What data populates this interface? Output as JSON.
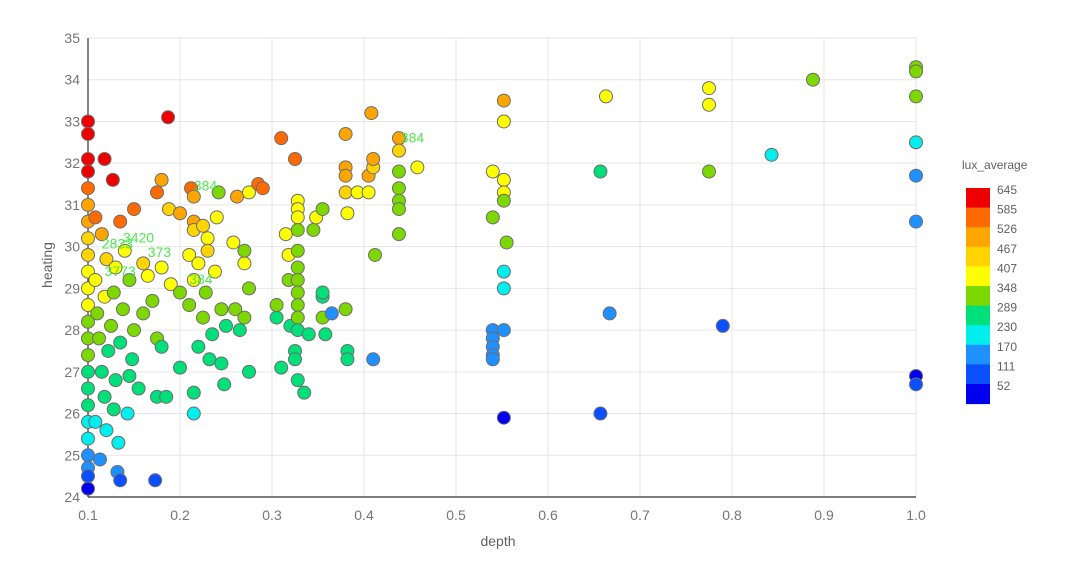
{
  "chart_data": {
    "type": "scatter",
    "xlabel": "depth",
    "ylabel": "heating",
    "xlim": [
      0.1,
      1.0
    ],
    "ylim": [
      24,
      35
    ],
    "xticks": [
      "0.1",
      "0.2",
      "0.3",
      "0.4",
      "0.5",
      "0.6",
      "0.7",
      "0.8",
      "0.9",
      "1.0"
    ],
    "yticks": [
      "24",
      "25",
      "26",
      "27",
      "28",
      "29",
      "30",
      "31",
      "32",
      "33",
      "34",
      "35"
    ],
    "grid": true,
    "color_scale": {
      "title": "lux_average",
      "placement": "right",
      "bins": [
        {
          "label": "645",
          "color": "#ee0000"
        },
        {
          "label": "585",
          "color": "#ff6a00"
        },
        {
          "label": "526",
          "color": "#ffa500"
        },
        {
          "label": "467",
          "color": "#ffd400"
        },
        {
          "label": "407",
          "color": "#ffff00"
        },
        {
          "label": "348",
          "color": "#7dd700"
        },
        {
          "label": "289",
          "color": "#00e07a"
        },
        {
          "label": "230",
          "color": "#00eeee"
        },
        {
          "label": "170",
          "color": "#1e90ff"
        },
        {
          "label": "111",
          "color": "#0a50ff"
        },
        {
          "label": "52",
          "color": "#0000ee"
        }
      ]
    },
    "points": [
      {
        "x": 0.1,
        "y": 33.0,
        "v": 640
      },
      {
        "x": 0.1,
        "y": 32.7,
        "v": 630
      },
      {
        "x": 0.1,
        "y": 32.1,
        "v": 640
      },
      {
        "x": 0.1,
        "y": 31.8,
        "v": 620
      },
      {
        "x": 0.1,
        "y": 31.4,
        "v": 560
      },
      {
        "x": 0.1,
        "y": 31.0,
        "v": 540
      },
      {
        "x": 0.1,
        "y": 30.6,
        "v": 520
      },
      {
        "x": 0.1,
        "y": 30.2,
        "v": 480
      },
      {
        "x": 0.1,
        "y": 29.8,
        "v": 440
      },
      {
        "x": 0.1,
        "y": 29.4,
        "v": 420
      },
      {
        "x": 0.1,
        "y": 29.0,
        "v": 400
      },
      {
        "x": 0.1,
        "y": 28.6,
        "v": 380
      },
      {
        "x": 0.1,
        "y": 28.2,
        "v": 360
      },
      {
        "x": 0.1,
        "y": 27.8,
        "v": 340
      },
      {
        "x": 0.1,
        "y": 27.4,
        "v": 320
      },
      {
        "x": 0.1,
        "y": 27.0,
        "v": 300
      },
      {
        "x": 0.1,
        "y": 26.6,
        "v": 290
      },
      {
        "x": 0.1,
        "y": 26.2,
        "v": 270
      },
      {
        "x": 0.1,
        "y": 25.8,
        "v": 250
      },
      {
        "x": 0.1,
        "y": 25.4,
        "v": 230
      },
      {
        "x": 0.1,
        "y": 25.0,
        "v": 200
      },
      {
        "x": 0.1,
        "y": 24.7,
        "v": 170
      },
      {
        "x": 0.1,
        "y": 24.5,
        "v": 110
      },
      {
        "x": 0.1,
        "y": 24.2,
        "v": 60
      },
      {
        "x": 0.118,
        "y": 32.1,
        "v": 630
      },
      {
        "x": 0.127,
        "y": 31.6,
        "v": 640
      },
      {
        "x": 0.187,
        "y": 33.1,
        "v": 640
      },
      {
        "x": 0.108,
        "y": 30.7,
        "v": 560
      },
      {
        "x": 0.115,
        "y": 30.3,
        "v": 520
      },
      {
        "x": 0.135,
        "y": 30.6,
        "v": 560
      },
      {
        "x": 0.15,
        "y": 30.9,
        "v": 560
      },
      {
        "x": 0.12,
        "y": 29.7,
        "v": 450
      },
      {
        "x": 0.14,
        "y": 29.9,
        "v": 420
      },
      {
        "x": 0.13,
        "y": 29.5,
        "v": 400
      },
      {
        "x": 0.16,
        "y": 29.6,
        "v": 440
      },
      {
        "x": 0.108,
        "y": 29.2,
        "v": 380
      },
      {
        "x": 0.118,
        "y": 28.8,
        "v": 400
      },
      {
        "x": 0.128,
        "y": 28.9,
        "v": 370
      },
      {
        "x": 0.145,
        "y": 29.2,
        "v": 350
      },
      {
        "x": 0.11,
        "y": 28.4,
        "v": 340
      },
      {
        "x": 0.125,
        "y": 28.1,
        "v": 330
      },
      {
        "x": 0.138,
        "y": 28.5,
        "v": 340
      },
      {
        "x": 0.15,
        "y": 28.0,
        "v": 320
      },
      {
        "x": 0.112,
        "y": 27.8,
        "v": 320
      },
      {
        "x": 0.122,
        "y": 27.5,
        "v": 310
      },
      {
        "x": 0.135,
        "y": 27.7,
        "v": 300
      },
      {
        "x": 0.148,
        "y": 27.3,
        "v": 300
      },
      {
        "x": 0.115,
        "y": 27.0,
        "v": 290
      },
      {
        "x": 0.13,
        "y": 26.8,
        "v": 280
      },
      {
        "x": 0.145,
        "y": 26.9,
        "v": 290
      },
      {
        "x": 0.155,
        "y": 26.6,
        "v": 300
      },
      {
        "x": 0.118,
        "y": 26.4,
        "v": 280
      },
      {
        "x": 0.128,
        "y": 26.1,
        "v": 270
      },
      {
        "x": 0.108,
        "y": 25.8,
        "v": 240
      },
      {
        "x": 0.12,
        "y": 25.6,
        "v": 230
      },
      {
        "x": 0.133,
        "y": 25.3,
        "v": 230
      },
      {
        "x": 0.143,
        "y": 26.0,
        "v": 240
      },
      {
        "x": 0.113,
        "y": 24.9,
        "v": 170
      },
      {
        "x": 0.132,
        "y": 24.6,
        "v": 150
      },
      {
        "x": 0.135,
        "y": 24.4,
        "v": 120
      },
      {
        "x": 0.173,
        "y": 24.4,
        "v": 120
      },
      {
        "x": 0.16,
        "y": 28.4,
        "v": 330
      },
      {
        "x": 0.17,
        "y": 28.7,
        "v": 350
      },
      {
        "x": 0.175,
        "y": 27.8,
        "v": 320
      },
      {
        "x": 0.18,
        "y": 27.6,
        "v": 300
      },
      {
        "x": 0.165,
        "y": 29.3,
        "v": 380
      },
      {
        "x": 0.18,
        "y": 29.5,
        "v": 400
      },
      {
        "x": 0.19,
        "y": 29.1,
        "v": 380
      },
      {
        "x": 0.2,
        "y": 28.9,
        "v": 360
      },
      {
        "x": 0.175,
        "y": 26.4,
        "v": 270
      },
      {
        "x": 0.185,
        "y": 26.4,
        "v": 300
      },
      {
        "x": 0.2,
        "y": 27.1,
        "v": 300
      },
      {
        "x": 0.215,
        "y": 26.5,
        "v": 260
      },
      {
        "x": 0.215,
        "y": 26.0,
        "v": 250
      },
      {
        "x": 0.18,
        "y": 31.6,
        "v": 520
      },
      {
        "x": 0.175,
        "y": 31.3,
        "v": 560
      },
      {
        "x": 0.188,
        "y": 30.9,
        "v": 470
      },
      {
        "x": 0.2,
        "y": 30.8,
        "v": 500
      },
      {
        "x": 0.212,
        "y": 31.4,
        "v": 560
      },
      {
        "x": 0.215,
        "y": 31.2,
        "v": 540
      },
      {
        "x": 0.215,
        "y": 30.6,
        "v": 500
      },
      {
        "x": 0.215,
        "y": 30.4,
        "v": 480
      },
      {
        "x": 0.225,
        "y": 30.5,
        "v": 440
      },
      {
        "x": 0.23,
        "y": 30.2,
        "v": 420
      },
      {
        "x": 0.24,
        "y": 30.7,
        "v": 420
      },
      {
        "x": 0.242,
        "y": 31.3,
        "v": 350
      },
      {
        "x": 0.23,
        "y": 29.9,
        "v": 440
      },
      {
        "x": 0.21,
        "y": 29.8,
        "v": 420
      },
      {
        "x": 0.22,
        "y": 29.6,
        "v": 410
      },
      {
        "x": 0.238,
        "y": 29.4,
        "v": 420
      },
      {
        "x": 0.215,
        "y": 29.2,
        "v": 380
      },
      {
        "x": 0.228,
        "y": 28.9,
        "v": 370
      },
      {
        "x": 0.245,
        "y": 28.5,
        "v": 340
      },
      {
        "x": 0.21,
        "y": 28.6,
        "v": 360
      },
      {
        "x": 0.225,
        "y": 28.3,
        "v": 340
      },
      {
        "x": 0.235,
        "y": 27.9,
        "v": 310
      },
      {
        "x": 0.25,
        "y": 28.1,
        "v": 310
      },
      {
        "x": 0.22,
        "y": 27.6,
        "v": 310
      },
      {
        "x": 0.232,
        "y": 27.3,
        "v": 300
      },
      {
        "x": 0.245,
        "y": 27.2,
        "v": 300
      },
      {
        "x": 0.248,
        "y": 26.7,
        "v": 270
      },
      {
        "x": 0.26,
        "y": 28.5,
        "v": 330
      },
      {
        "x": 0.265,
        "y": 28.0,
        "v": 300
      },
      {
        "x": 0.27,
        "y": 28.3,
        "v": 320
      },
      {
        "x": 0.27,
        "y": 29.6,
        "v": 380
      },
      {
        "x": 0.258,
        "y": 30.1,
        "v": 420
      },
      {
        "x": 0.27,
        "y": 29.9,
        "v": 370
      },
      {
        "x": 0.262,
        "y": 31.2,
        "v": 520
      },
      {
        "x": 0.275,
        "y": 31.3,
        "v": 430
      },
      {
        "x": 0.285,
        "y": 31.5,
        "v": 560
      },
      {
        "x": 0.29,
        "y": 31.4,
        "v": 560
      },
      {
        "x": 0.275,
        "y": 27.0,
        "v": 290
      },
      {
        "x": 0.275,
        "y": 29.0,
        "v": 350
      },
      {
        "x": 0.305,
        "y": 28.3,
        "v": 310
      },
      {
        "x": 0.305,
        "y": 28.6,
        "v": 320
      },
      {
        "x": 0.31,
        "y": 27.1,
        "v": 290
      },
      {
        "x": 0.32,
        "y": 28.1,
        "v": 300
      },
      {
        "x": 0.31,
        "y": 32.6,
        "v": 580
      },
      {
        "x": 0.325,
        "y": 32.1,
        "v": 580
      },
      {
        "x": 0.315,
        "y": 30.3,
        "v": 430
      },
      {
        "x": 0.318,
        "y": 29.8,
        "v": 380
      },
      {
        "x": 0.318,
        "y": 29.2,
        "v": 360
      },
      {
        "x": 0.325,
        "y": 27.5,
        "v": 280
      },
      {
        "x": 0.325,
        "y": 27.3,
        "v": 270
      },
      {
        "x": 0.328,
        "y": 26.8,
        "v": 260
      },
      {
        "x": 0.335,
        "y": 26.5,
        "v": 260
      },
      {
        "x": 0.328,
        "y": 31.1,
        "v": 420
      },
      {
        "x": 0.328,
        "y": 30.9,
        "v": 430
      },
      {
        "x": 0.328,
        "y": 30.7,
        "v": 410
      },
      {
        "x": 0.328,
        "y": 30.4,
        "v": 370
      },
      {
        "x": 0.328,
        "y": 29.9,
        "v": 350
      },
      {
        "x": 0.328,
        "y": 29.5,
        "v": 350
      },
      {
        "x": 0.328,
        "y": 29.2,
        "v": 340
      },
      {
        "x": 0.328,
        "y": 28.9,
        "v": 320
      },
      {
        "x": 0.328,
        "y": 28.6,
        "v": 330
      },
      {
        "x": 0.328,
        "y": 28.3,
        "v": 320
      },
      {
        "x": 0.328,
        "y": 28.0,
        "v": 310
      },
      {
        "x": 0.34,
        "y": 27.9,
        "v": 300
      },
      {
        "x": 0.345,
        "y": 30.4,
        "v": 360
      },
      {
        "x": 0.348,
        "y": 30.7,
        "v": 380
      },
      {
        "x": 0.355,
        "y": 30.9,
        "v": 360
      },
      {
        "x": 0.355,
        "y": 28.8,
        "v": 310
      },
      {
        "x": 0.355,
        "y": 28.3,
        "v": 320
      },
      {
        "x": 0.355,
        "y": 28.9,
        "v": 300
      },
      {
        "x": 0.358,
        "y": 27.9,
        "v": 280
      },
      {
        "x": 0.365,
        "y": 28.4,
        "v": 160
      },
      {
        "x": 0.38,
        "y": 32.7,
        "v": 520
      },
      {
        "x": 0.38,
        "y": 31.9,
        "v": 500
      },
      {
        "x": 0.38,
        "y": 31.7,
        "v": 520
      },
      {
        "x": 0.38,
        "y": 31.3,
        "v": 450
      },
      {
        "x": 0.382,
        "y": 30.8,
        "v": 380
      },
      {
        "x": 0.38,
        "y": 28.5,
        "v": 330
      },
      {
        "x": 0.382,
        "y": 27.5,
        "v": 270
      },
      {
        "x": 0.382,
        "y": 27.3,
        "v": 280
      },
      {
        "x": 0.393,
        "y": 31.3,
        "v": 430
      },
      {
        "x": 0.405,
        "y": 31.3,
        "v": 380
      },
      {
        "x": 0.408,
        "y": 33.2,
        "v": 530
      },
      {
        "x": 0.405,
        "y": 31.7,
        "v": 540
      },
      {
        "x": 0.41,
        "y": 31.9,
        "v": 480
      },
      {
        "x": 0.41,
        "y": 32.1,
        "v": 500
      },
      {
        "x": 0.412,
        "y": 29.8,
        "v": 340
      },
      {
        "x": 0.41,
        "y": 27.3,
        "v": 170
      },
      {
        "x": 0.438,
        "y": 32.6,
        "v": 520
      },
      {
        "x": 0.438,
        "y": 32.3,
        "v": 470
      },
      {
        "x": 0.438,
        "y": 31.8,
        "v": 330
      },
      {
        "x": 0.438,
        "y": 31.4,
        "v": 350
      },
      {
        "x": 0.438,
        "y": 31.1,
        "v": 360
      },
      {
        "x": 0.438,
        "y": 30.9,
        "v": 350
      },
      {
        "x": 0.438,
        "y": 30.3,
        "v": 350
      },
      {
        "x": 0.458,
        "y": 31.9,
        "v": 420
      },
      {
        "x": 0.54,
        "y": 31.8,
        "v": 420
      },
      {
        "x": 0.54,
        "y": 30.7,
        "v": 340
      },
      {
        "x": 0.54,
        "y": 28.0,
        "v": 170
      },
      {
        "x": 0.54,
        "y": 27.8,
        "v": 170
      },
      {
        "x": 0.54,
        "y": 27.6,
        "v": 160
      },
      {
        "x": 0.54,
        "y": 27.4,
        "v": 160
      },
      {
        "x": 0.54,
        "y": 27.3,
        "v": 150
      },
      {
        "x": 0.552,
        "y": 33.5,
        "v": 520
      },
      {
        "x": 0.552,
        "y": 33.0,
        "v": 420
      },
      {
        "x": 0.552,
        "y": 31.6,
        "v": 380
      },
      {
        "x": 0.552,
        "y": 31.3,
        "v": 380
      },
      {
        "x": 0.552,
        "y": 31.1,
        "v": 360
      },
      {
        "x": 0.555,
        "y": 30.1,
        "v": 320
      },
      {
        "x": 0.552,
        "y": 29.4,
        "v": 240
      },
      {
        "x": 0.552,
        "y": 29.0,
        "v": 230
      },
      {
        "x": 0.552,
        "y": 28.0,
        "v": 170
      },
      {
        "x": 0.552,
        "y": 25.9,
        "v": 60
      },
      {
        "x": 0.657,
        "y": 31.8,
        "v": 310
      },
      {
        "x": 0.657,
        "y": 26.0,
        "v": 110
      },
      {
        "x": 0.663,
        "y": 33.6,
        "v": 420
      },
      {
        "x": 0.667,
        "y": 28.4,
        "v": 150
      },
      {
        "x": 0.775,
        "y": 33.8,
        "v": 420
      },
      {
        "x": 0.775,
        "y": 33.4,
        "v": 420
      },
      {
        "x": 0.775,
        "y": 31.8,
        "v": 320
      },
      {
        "x": 0.79,
        "y": 28.1,
        "v": 110
      },
      {
        "x": 0.843,
        "y": 32.2,
        "v": 250
      },
      {
        "x": 0.888,
        "y": 34.0,
        "v": 360
      },
      {
        "x": 1.0,
        "y": 34.3,
        "v": 350
      },
      {
        "x": 1.0,
        "y": 34.2,
        "v": 370
      },
      {
        "x": 1.0,
        "y": 33.6,
        "v": 360
      },
      {
        "x": 1.0,
        "y": 32.5,
        "v": 230
      },
      {
        "x": 1.0,
        "y": 31.7,
        "v": 160
      },
      {
        "x": 1.0,
        "y": 30.6,
        "v": 160
      },
      {
        "x": 1.0,
        "y": 26.9,
        "v": 60
      },
      {
        "x": 1.0,
        "y": 26.7,
        "v": 110
      }
    ],
    "labels": [
      {
        "x": 0.138,
        "y": 30.1,
        "text": "3420"
      },
      {
        "x": 0.215,
        "y": 31.35,
        "text": "384"
      },
      {
        "x": 0.115,
        "y": 29.95,
        "text": "2833"
      },
      {
        "x": 0.165,
        "y": 29.75,
        "text": "373"
      },
      {
        "x": 0.118,
        "y": 29.3,
        "text": "3773"
      },
      {
        "x": 0.21,
        "y": 29.1,
        "text": "384"
      },
      {
        "x": 0.44,
        "y": 32.5,
        "text": "384"
      }
    ]
  }
}
